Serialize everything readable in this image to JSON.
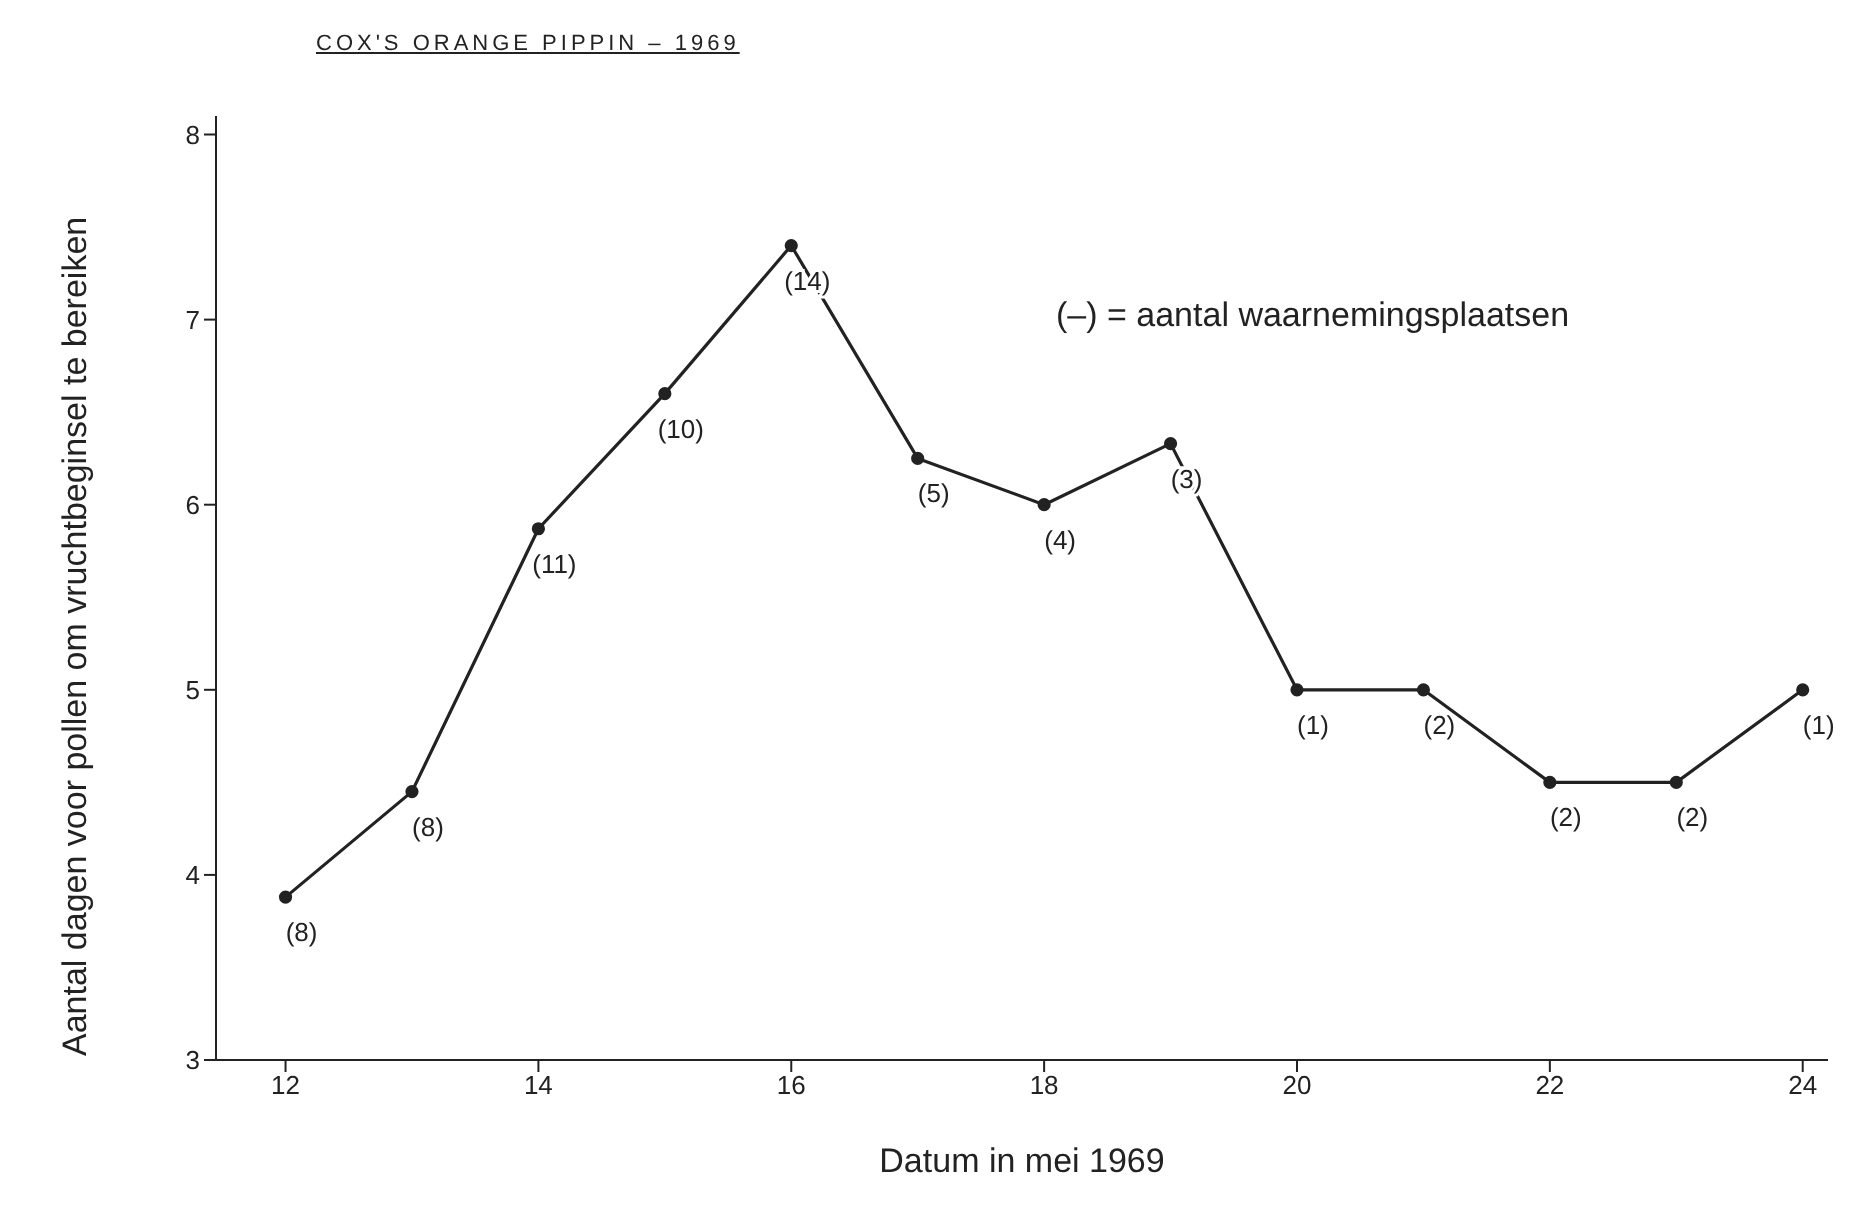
{
  "chart_data": {
    "type": "line",
    "title": "COX'S ORANGE PIPPIN – 1969",
    "xlabel": "Datum in mei 1969",
    "ylabel": "Aantal dagen voor pollen om vruchtbeginsel te bereiken",
    "x": [
      12,
      13,
      14,
      15,
      16,
      17,
      18,
      19,
      20,
      21,
      22,
      23,
      24
    ],
    "series": [
      {
        "color": "#222222",
        "values": [
          3.88,
          4.45,
          5.87,
          6.6,
          7.4,
          6.25,
          6.0,
          6.33,
          5.0,
          5.0,
          4.5,
          4.5,
          5.0
        ]
      }
    ],
    "xlim": [
      11.45,
      24.2
    ],
    "xticks": [
      12,
      14,
      16,
      18,
      20,
      22,
      24
    ],
    "ylim": [
      3,
      8.1
    ],
    "yticks": [
      3,
      4,
      5,
      6,
      7,
      8
    ],
    "grid": false,
    "legend": false,
    "marker": "circle",
    "line_style": "solid",
    "annotations": [
      "(–) =  aantal waarnemingsplaatsen",
      {
        "text": "(8)",
        "x": 12,
        "y": 3.88
      },
      {
        "text": "(8)",
        "x": 13,
        "y": 4.45
      },
      {
        "text": "(11)",
        "x": 14,
        "y": 5.87
      },
      {
        "text": "(10)",
        "x": 15,
        "y": 6.6
      },
      {
        "text": "(14)",
        "x": 16,
        "y": 7.4
      },
      {
        "text": "(5)",
        "x": 17,
        "y": 6.25
      },
      {
        "text": "(4)",
        "x": 18,
        "y": 6.0
      },
      {
        "text": "(3)",
        "x": 19,
        "y": 6.33
      },
      {
        "text": "(1)",
        "x": 20,
        "y": 5.0
      },
      {
        "text": "(2)",
        "x": 21,
        "y": 5.0
      },
      {
        "text": "(2)",
        "x": 22,
        "y": 4.5
      },
      {
        "text": "(2)",
        "x": 23,
        "y": 4.5
      },
      {
        "text": "(1)",
        "x": 24,
        "y": 5.0
      }
    ]
  }
}
